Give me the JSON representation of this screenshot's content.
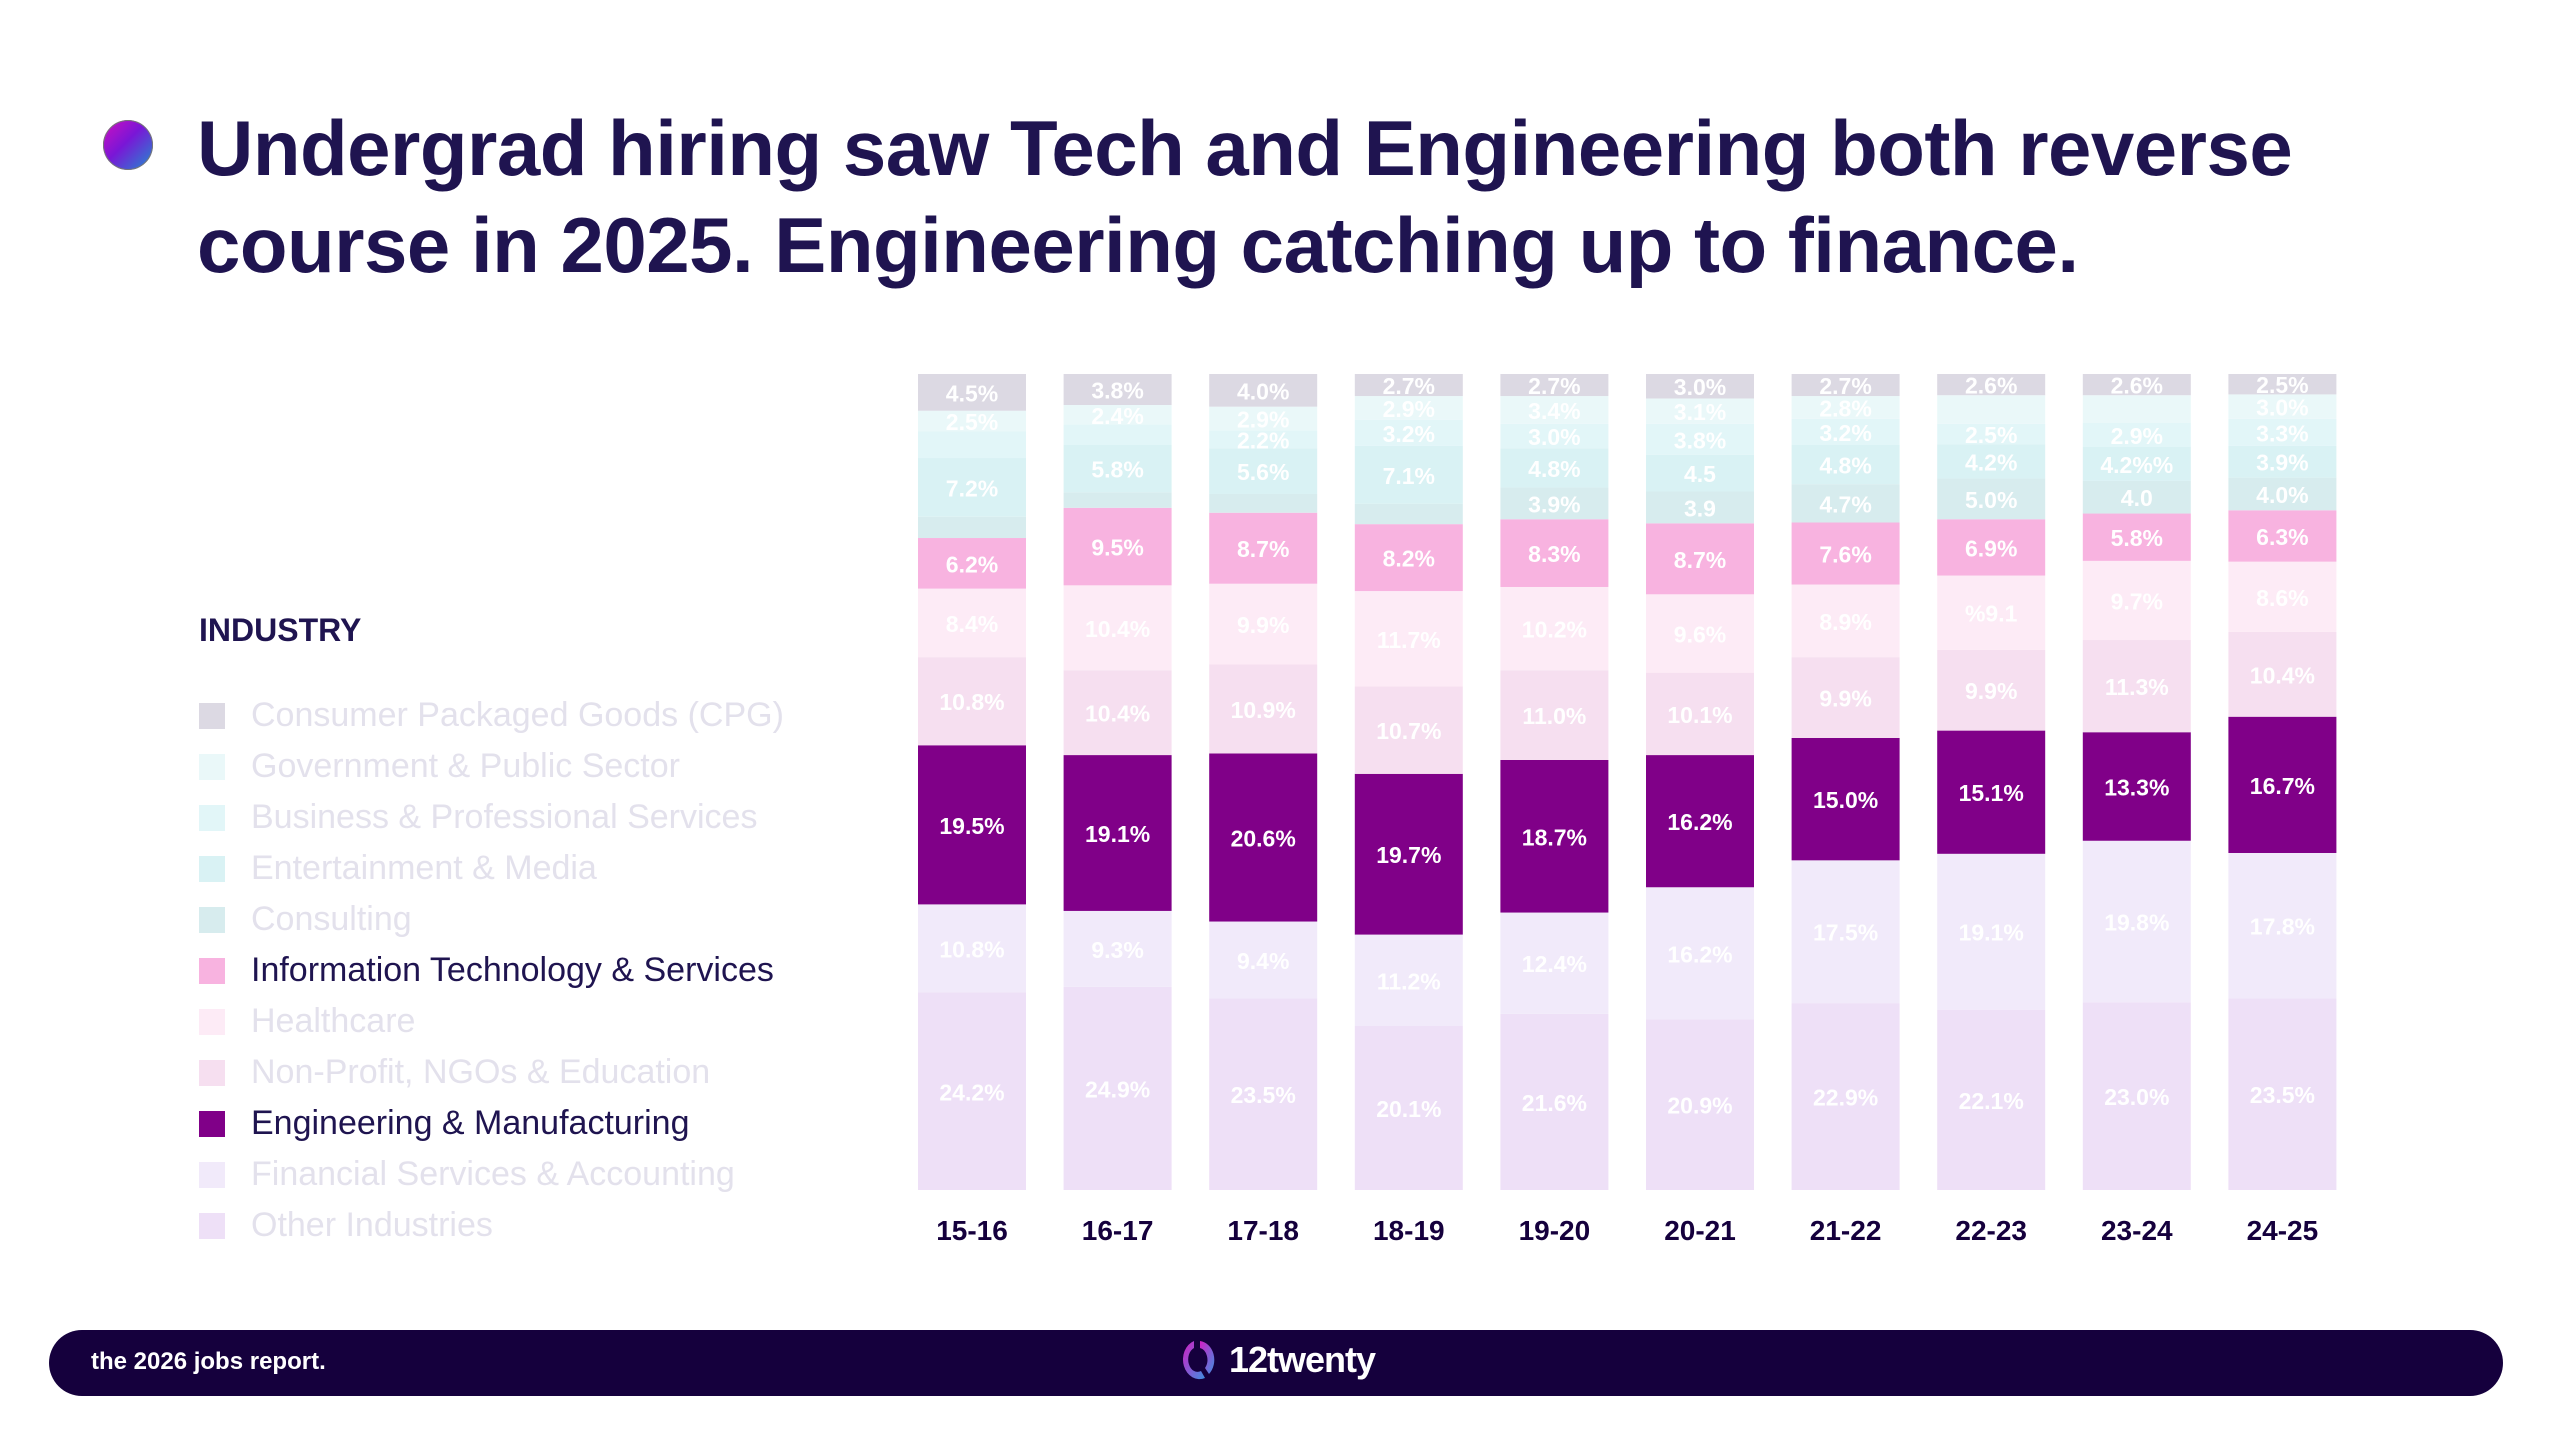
{
  "header": {
    "title": "Undergrad hiring saw Tech and Engineering both reverse course in 2025.  Engineering catching up to finance.",
    "bullet_icon": "gradient-circle"
  },
  "legend": {
    "title": "INDUSTRY",
    "items": [
      {
        "label": "Consumer Packaged Goods (CPG)",
        "color": "#dcd9e3",
        "highlighted": false
      },
      {
        "label": "Government & Public Sector",
        "color": "#eaf8f9",
        "highlighted": false
      },
      {
        "label": "Business & Professional Services",
        "color": "#e2f6f8",
        "highlighted": false
      },
      {
        "label": "Entertainment & Media",
        "color": "#d9f2f4",
        "highlighted": false
      },
      {
        "label": "Consulting",
        "color": "#d7ecee",
        "highlighted": false
      },
      {
        "label": "Information Technology & Services",
        "color": "#f8b3e0",
        "highlighted": true
      },
      {
        "label": "Healthcare",
        "color": "#fdebf6",
        "highlighted": false
      },
      {
        "label": "Non-Profit, NGOs & Education",
        "color": "#f6dff0",
        "highlighted": false
      },
      {
        "label": "Engineering & Manufacturing",
        "color": "#800088",
        "highlighted": true
      },
      {
        "label": "Financial Services & Accounting",
        "color": "#f1eafa",
        "highlighted": false
      },
      {
        "label": "Other Industries",
        "color": "#eee0f7",
        "highlighted": false
      }
    ]
  },
  "chart_data": {
    "type": "bar",
    "stacked": true,
    "categories": [
      "15-16",
      "16-17",
      "17-18",
      "18-19",
      "19-20",
      "20-21",
      "21-22",
      "22-23",
      "23-24",
      "24-25"
    ],
    "ylim": [
      0,
      100
    ],
    "grid": false,
    "legend_placement": "left",
    "series": [
      {
        "name": "Other Industries",
        "values": [
          24.2,
          24.9,
          23.5,
          20.1,
          21.6,
          20.9,
          22.9,
          22.1,
          23.0,
          23.5
        ],
        "labels": [
          "24.2%",
          "24.9%",
          "23.5%",
          "20.1%",
          "21.6%",
          "20.9%",
          "22.9%",
          "22.1%",
          "23.0%",
          "23.5%"
        ]
      },
      {
        "name": "Financial Services & Accounting",
        "values": [
          10.8,
          9.3,
          9.4,
          11.2,
          12.4,
          16.2,
          17.5,
          19.1,
          19.8,
          17.8
        ],
        "labels": [
          "10.8%",
          "9.3%",
          "9.4%",
          "11.2%",
          "12.4%",
          "16.2%",
          "17.5%",
          "19.1%",
          "19.8%",
          "17.8%"
        ]
      },
      {
        "name": "Engineering & Manufacturing",
        "values": [
          19.5,
          19.1,
          20.6,
          19.7,
          18.7,
          16.2,
          15.0,
          15.1,
          13.3,
          16.7
        ],
        "labels": [
          "19.5%",
          "19.1%",
          "20.6%",
          "19.7%",
          "18.7%",
          "16.2%",
          "15.0%",
          "15.1%",
          "13.3%",
          "16.7%"
        ]
      },
      {
        "name": "Non-Profit, NGOs & Education",
        "values": [
          10.8,
          10.4,
          10.9,
          10.7,
          11.0,
          10.1,
          9.9,
          9.9,
          11.3,
          10.4
        ],
        "labels": [
          "10.8%",
          "10.4%",
          "10.9%",
          "10.7%",
          "11.0%",
          "10.1%",
          "9.9%",
          "9.9%",
          "11.3%",
          "10.4%"
        ]
      },
      {
        "name": "Healthcare",
        "values": [
          8.4,
          10.4,
          9.9,
          11.7,
          10.2,
          9.6,
          8.9,
          9.1,
          9.7,
          8.6
        ],
        "labels": [
          "8.4%",
          "10.4%",
          "9.9%",
          "11.7%",
          "10.2%",
          "9.6%",
          "8.9%",
          "%9.1",
          "9.7%",
          "8.6%"
        ]
      },
      {
        "name": "Information Technology & Services",
        "values": [
          6.2,
          9.5,
          8.7,
          8.2,
          8.3,
          8.7,
          7.6,
          6.9,
          5.8,
          6.3
        ],
        "labels": [
          "6.2%",
          "9.5%",
          "8.7%",
          "8.2%",
          "8.3%",
          "8.7%",
          "7.6%",
          "6.9%",
          "5.8%",
          "6.3%"
        ]
      },
      {
        "name": "Consulting",
        "values": [
          2.6,
          1.9,
          2.3,
          2.5,
          3.9,
          3.9,
          4.7,
          5.0,
          4.0,
          4.0
        ],
        "labels": [
          "",
          "",
          "",
          "",
          "3.9%",
          "3.9",
          "4.7%",
          "5.0%",
          "4.0",
          "4.0%"
        ]
      },
      {
        "name": "Entertainment & Media",
        "values": [
          7.2,
          5.8,
          5.6,
          7.1,
          4.8,
          4.5,
          4.8,
          4.2,
          4.2,
          3.9
        ],
        "labels": [
          "7.2%",
          "5.8%",
          "5.6%",
          "7.1%",
          "4.8%",
          "4.5",
          "4.8%",
          "4.2%",
          "4.2%%",
          "3.9%"
        ]
      },
      {
        "name": "Business & Professional Services",
        "values": [
          3.3,
          2.5,
          2.2,
          3.2,
          3.0,
          3.8,
          3.2,
          2.5,
          2.9,
          3.3
        ],
        "labels": [
          "",
          "",
          "2.2%",
          "3.2%",
          "3.0%",
          "3.8%",
          "3.2%",
          "2.5%",
          "2.9%",
          "3.3%"
        ]
      },
      {
        "name": "Government & Public Sector",
        "values": [
          2.5,
          2.4,
          2.9,
          2.9,
          3.4,
          3.1,
          2.8,
          3.5,
          3.4,
          3.0
        ],
        "labels": [
          "2.5%",
          "2.4%",
          "2.9%",
          "2.9%",
          "3.4%",
          "3.1%",
          "2.8%",
          "",
          "",
          "3.0%"
        ]
      },
      {
        "name": "Consumer Packaged Goods (CPG)",
        "values": [
          4.5,
          3.8,
          4.0,
          2.7,
          2.7,
          3.0,
          2.7,
          2.6,
          2.6,
          2.5
        ],
        "labels": [
          "4.5%",
          "3.8%",
          "4.0%",
          "2.7%",
          "2.7%",
          "3.0%",
          "2.7%",
          "2.6%",
          "2.6%",
          "2.5%"
        ]
      }
    ],
    "colors": [
      "#eee0f7",
      "#f1eafa",
      "#800088",
      "#f6dff0",
      "#fdebf6",
      "#f8b3e0",
      "#d7ecee",
      "#d9f2f4",
      "#e2f6f8",
      "#eaf8f9",
      "#dcd9e3"
    ]
  },
  "footer": {
    "tagline": "the 2026 jobs report.",
    "brand": "12twenty",
    "logo_icon": "12twenty-logo"
  }
}
